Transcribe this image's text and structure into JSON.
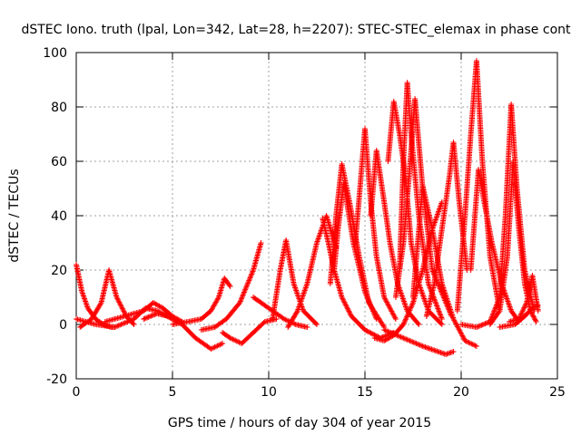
{
  "chart_data": {
    "type": "scatter",
    "title": "dSTEC Iono. truth (lpal, Lon=342, Lat=28, h=2207): STEC-STEC_elemax in phase cont",
    "xlabel": "GPS time / hours of day 304 of year 2015",
    "ylabel": "dSTEC  / TECUs",
    "xlim": [
      0,
      25
    ],
    "ylim": [
      -20,
      100
    ],
    "xticks": [
      0,
      5,
      10,
      15,
      20,
      25
    ],
    "yticks": [
      -20,
      0,
      20,
      40,
      60,
      80,
      100
    ],
    "grid": true,
    "marker": "+",
    "color": "#ff0000",
    "series": [
      {
        "x": [
          0.0,
          0.3,
          0.6,
          1.0,
          1.4,
          1.8,
          2.0
        ],
        "y": [
          22,
          12,
          6,
          2,
          0,
          -1,
          -1
        ]
      },
      {
        "x": [
          0.2,
          0.8,
          1.3,
          1.7,
          2.1,
          2.6,
          3.0
        ],
        "y": [
          -1,
          2,
          8,
          20,
          10,
          3,
          0
        ]
      },
      {
        "x": [
          0.0,
          1.0,
          2.0,
          3.0,
          3.6,
          4.2,
          5.0
        ],
        "y": [
          2,
          0,
          -1,
          2,
          6,
          5,
          2
        ]
      },
      {
        "x": [
          1.5,
          2.5,
          3.5,
          4.0,
          4.5,
          5.0,
          5.5
        ],
        "y": [
          1,
          3,
          5,
          8,
          6,
          3,
          1
        ]
      },
      {
        "x": [
          3.5,
          4.2,
          4.8,
          5.5,
          6.2,
          7.0,
          7.6
        ],
        "y": [
          2,
          4,
          3,
          0,
          -5,
          -9,
          -7
        ]
      },
      {
        "x": [
          5.0,
          5.8,
          6.5,
          7.0,
          7.4,
          7.7,
          8.0
        ],
        "y": [
          0,
          1,
          2,
          5,
          10,
          17,
          14
        ]
      },
      {
        "x": [
          6.5,
          7.2,
          7.8,
          8.5,
          9.2,
          9.6
        ],
        "y": [
          -2,
          -1,
          2,
          8,
          20,
          30
        ]
      },
      {
        "x": [
          7.6,
          8.0,
          8.6,
          9.2,
          9.8,
          10.4
        ],
        "y": [
          -3,
          -5,
          -7,
          -3,
          1,
          2
        ]
      },
      {
        "x": [
          9.2,
          9.6,
          10.2,
          10.8,
          11.4,
          12.0
        ],
        "y": [
          10,
          8,
          5,
          2,
          0,
          -1
        ]
      },
      {
        "x": [
          10.2,
          10.6,
          10.9,
          11.3,
          11.8,
          12.5
        ],
        "y": [
          2,
          20,
          31,
          15,
          5,
          0
        ]
      },
      {
        "x": [
          11.0,
          11.5,
          12.0,
          12.5,
          13.0,
          13.5
        ],
        "y": [
          -1,
          5,
          15,
          30,
          40,
          28
        ]
      },
      {
        "x": [
          12.8,
          13.1,
          13.4,
          13.8,
          14.3,
          15.0,
          15.8,
          16.5
        ],
        "y": [
          39,
          30,
          20,
          10,
          3,
          -2,
          -5,
          -3
        ]
      },
      {
        "x": [
          13.2,
          13.5,
          13.8,
          14.2,
          14.7,
          15.2,
          16.0
        ],
        "y": [
          15,
          40,
          59,
          45,
          25,
          8,
          -1
        ]
      },
      {
        "x": [
          13.4,
          13.6,
          13.9,
          14.4,
          15.0,
          15.6
        ],
        "y": [
          20,
          35,
          52,
          30,
          12,
          2
        ]
      },
      {
        "x": [
          14.5,
          14.8,
          15.0,
          15.3,
          15.6,
          16.0,
          16.6
        ],
        "y": [
          30,
          55,
          72,
          45,
          25,
          10,
          2
        ]
      },
      {
        "x": [
          15.3,
          15.6,
          16.0,
          16.3,
          16.7,
          17.2,
          17.8
        ],
        "y": [
          40,
          64,
          45,
          30,
          15,
          5,
          0
        ]
      },
      {
        "x": [
          15.5,
          16.0,
          16.5,
          17.0,
          17.5,
          18.0,
          18.5,
          19.0
        ],
        "y": [
          -5,
          -6,
          -4,
          0,
          8,
          20,
          35,
          45
        ]
      },
      {
        "x": [
          16.2,
          16.5,
          16.8,
          17.1,
          17.4,
          17.8,
          18.3,
          19.0
        ],
        "y": [
          60,
          82,
          70,
          55,
          30,
          15,
          5,
          0
        ]
      },
      {
        "x": [
          16.8,
          17.0,
          17.2,
          17.4,
          17.8,
          18.3,
          19.0
        ],
        "y": [
          20,
          60,
          89,
          70,
          40,
          15,
          2
        ]
      },
      {
        "x": [
          16.6,
          17.0,
          17.3,
          17.6,
          18.0,
          18.5,
          19.5
        ],
        "y": [
          10,
          30,
          55,
          83,
          50,
          20,
          3
        ]
      },
      {
        "x": [
          17.5,
          18.0,
          18.5,
          19.0,
          19.6,
          20.2,
          20.8
        ],
        "y": [
          10,
          51,
          35,
          15,
          2,
          -6,
          -8
        ]
      },
      {
        "x": [
          16.0,
          17.0,
          18.0,
          18.8,
          19.2,
          19.6
        ],
        "y": [
          -2,
          -5,
          -8,
          -10,
          -11,
          -10
        ]
      },
      {
        "x": [
          18.2,
          18.6,
          19.0,
          19.4,
          19.6,
          19.9,
          20.3
        ],
        "y": [
          3,
          15,
          35,
          55,
          67,
          45,
          20
        ]
      },
      {
        "x": [
          19.8,
          20.2,
          20.5,
          20.8,
          21.1,
          21.5,
          22.0
        ],
        "y": [
          5,
          40,
          70,
          97,
          60,
          25,
          5
        ]
      },
      {
        "x": [
          20.5,
          20.9,
          21.2,
          21.6,
          22.1,
          22.6,
          23.0
        ],
        "y": [
          20,
          57,
          45,
          30,
          15,
          5,
          1
        ]
      },
      {
        "x": [
          20.0,
          20.8,
          21.5,
          22.0,
          22.3,
          22.6,
          22.9,
          23.3,
          23.8
        ],
        "y": [
          0,
          -1,
          1,
          10,
          40,
          81,
          50,
          20,
          5
        ]
      },
      {
        "x": [
          21.5,
          22.0,
          22.4,
          22.7,
          23.0,
          23.3,
          23.6,
          23.9
        ],
        "y": [
          0,
          5,
          25,
          60,
          35,
          15,
          5,
          1
        ]
      },
      {
        "x": [
          22.5,
          23.0,
          23.4,
          23.7,
          24.0
        ],
        "y": [
          1,
          2,
          8,
          18,
          5
        ]
      },
      {
        "x": [
          22.0,
          22.8,
          23.3,
          23.7,
          24.0
        ],
        "y": [
          -1,
          0,
          3,
          6,
          7
        ]
      }
    ]
  }
}
